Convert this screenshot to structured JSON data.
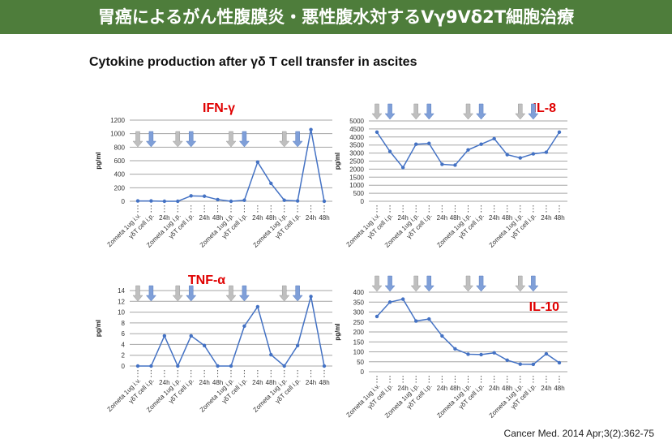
{
  "header": {
    "title": "胃癌によるがん性腹膜炎・悪性腹水対するVγ9Vδ2T細胞治療"
  },
  "subtitle": "Cytokine production after γδ T cell transfer in ascites",
  "citation": "Cancer Med. 2014 Apr;3(2):362-75",
  "colors": {
    "title_bar": "#4e7d3b",
    "series": "#4472c4",
    "chart_title": "#e00000",
    "zometa_arrow": "#bfbfbf",
    "tcell_arrow": "#7f9fd8"
  },
  "chart_data": [
    {
      "type": "line",
      "title": "IFN-γ",
      "ylabel": "pg/ml",
      "ylim": [
        0,
        1200
      ],
      "yticks": [
        0,
        200,
        400,
        600,
        800,
        1000,
        1200
      ],
      "grid": true,
      "categories": [
        "Zometa 1ug i.v.",
        "γδT cell i.p.",
        "24h",
        "Zometa 1ug i.p.",
        "γδT cell i.p.",
        "24h",
        "48h",
        "Zometa 1ug i.p.",
        "γδT cell i.p.",
        "24h",
        "48h",
        "Zometa 1ug i.p.",
        "γδT cell i.p.",
        "24h",
        "48h"
      ],
      "values": [
        5,
        5,
        0,
        0,
        80,
        75,
        25,
        0,
        15,
        580,
        265,
        15,
        5,
        1060,
        0
      ]
    },
    {
      "type": "line",
      "title": "IL-8",
      "ylabel": "pg/ml",
      "ylim": [
        0,
        5000
      ],
      "yticks": [
        0,
        500,
        1000,
        1500,
        2000,
        2500,
        3000,
        3500,
        4000,
        4500,
        5000
      ],
      "grid": true,
      "categories": [
        "Zometa 1ug i.v.",
        "γδT cell i.p.",
        "24h",
        "Zometa 1ug i.p.",
        "γδT cell i.p.",
        "24h",
        "48h",
        "Zometa 1ug i.p.",
        "γδT cell i.p.",
        "24h",
        "48h",
        "Zometa 1ug i.p.",
        "γδT cell i.p.",
        "24h",
        "48h"
      ],
      "values": [
        4300,
        3100,
        2100,
        3550,
        3600,
        2300,
        2250,
        3200,
        3550,
        3900,
        2900,
        2700,
        2950,
        3050,
        4300
      ]
    },
    {
      "type": "line",
      "title": "TNF-α",
      "ylabel": "pg/ml",
      "ylim": [
        0,
        14
      ],
      "yticks": [
        0,
        2,
        4,
        6,
        8,
        10,
        12,
        14
      ],
      "grid": true,
      "categories": [
        "Zometa 1ug i.v.",
        "γδT cell i.p.",
        "24h",
        "Zometa 1ug i.p.",
        "γδT cell i.p.",
        "24h",
        "48h",
        "Zometa 1ug i.p.",
        "γδT cell i.p.",
        "24h",
        "48h",
        "Zometa 1ug i.p.",
        "γδT cell i.p.",
        "24h",
        "48h"
      ],
      "values": [
        0,
        0,
        5.6,
        0,
        5.6,
        3.8,
        0,
        0,
        7.4,
        11,
        2.1,
        0,
        3.8,
        12.9,
        0
      ]
    },
    {
      "type": "line",
      "title": "IL-10",
      "ylabel": "pg/ml",
      "ylim": [
        0,
        400
      ],
      "yticks": [
        0,
        50,
        100,
        150,
        200,
        250,
        300,
        350,
        400
      ],
      "grid": true,
      "categories": [
        "Zometa 1ug i.v.",
        "γδT cell i.p.",
        "24h",
        "Zometa 1ug i.p.",
        "γδT cell i.p.",
        "24h",
        "48h",
        "Zometa 1ug i.p.",
        "γδT cell i.p.",
        "24h",
        "48h",
        "Zometa 1ug i.p.",
        "γδT cell i.p.",
        "24h",
        "48h"
      ],
      "values": [
        278,
        350,
        365,
        255,
        265,
        180,
        115,
        88,
        86,
        95,
        58,
        38,
        37,
        90,
        45
      ]
    }
  ]
}
